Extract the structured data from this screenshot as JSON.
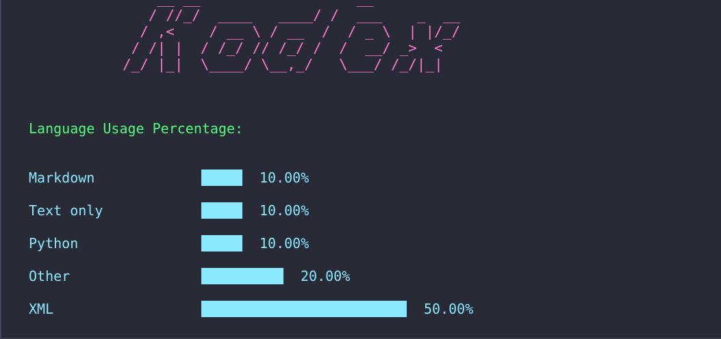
{
  "banner": {
    "ascii_art": "                  __ __                  __\n                 / //_/  ____   ____/ /  ___    _  __\n                / ,<    / __ \\ / __  /  / _ \\  | |/_/\n               / /| |  / /_/ // /_/ /  /  __/ _>  <\n              /_/ |_|  \\____/ \\__,_/   \\___/ /_/|_|",
    "color": "#ff79c6"
  },
  "heading": {
    "text": "Language Usage Percentage:",
    "color": "#50fa7b"
  },
  "chart_data": {
    "type": "bar",
    "categories": [
      "Markdown",
      "Text only",
      "Python",
      "Other",
      "XML"
    ],
    "values": [
      10,
      10,
      10,
      20,
      50
    ],
    "value_labels": [
      "10.00%",
      "10.00%",
      "10.00%",
      "20.00%",
      "50.00%"
    ],
    "unit": "%",
    "bar_color": "#8be9fd"
  }
}
